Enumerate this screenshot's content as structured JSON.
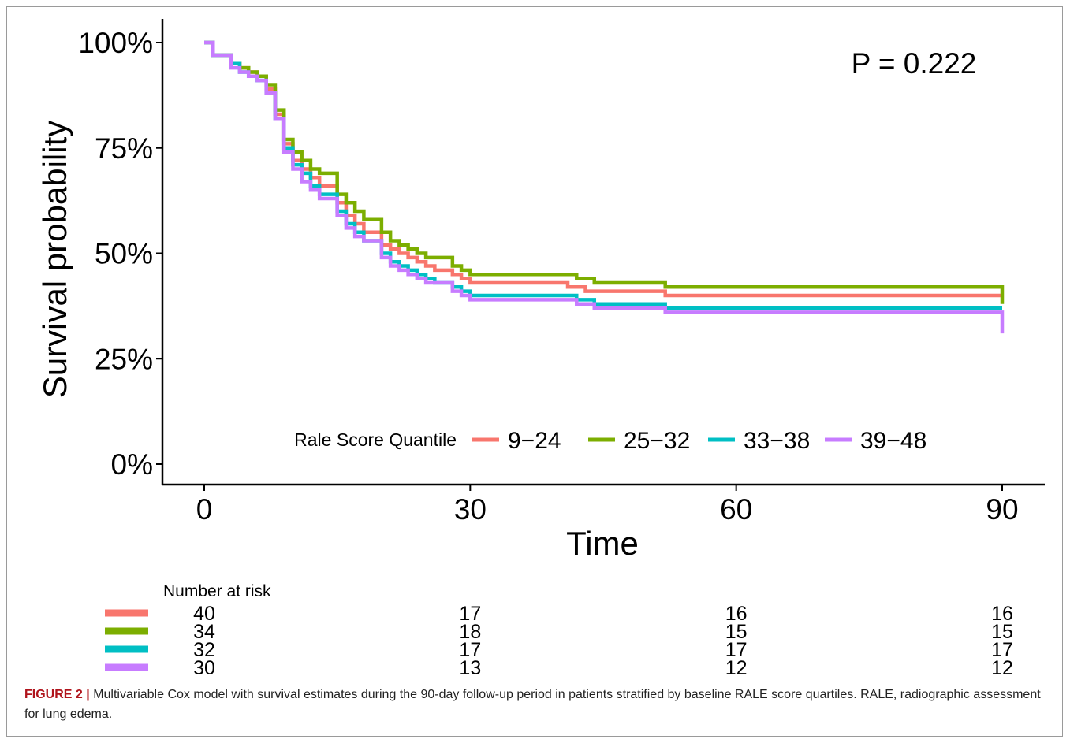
{
  "chart_data": {
    "type": "line",
    "subtype": "kaplan-meier step",
    "ylabel": "Survival probability",
    "xlabel": "Time",
    "x_ticks": [
      "0",
      "30",
      "60",
      "90"
    ],
    "x_tick_values": [
      0,
      30,
      60,
      90
    ],
    "y_ticks": [
      "0%",
      "25%",
      "50%",
      "75%",
      "100%"
    ],
    "y_tick_values": [
      0,
      0.25,
      0.5,
      0.75,
      1.0
    ],
    "xlim": [
      0,
      90
    ],
    "ylim": [
      0,
      1
    ],
    "annotation": "P = 0.222",
    "legend_title": "Rale Score Quantile",
    "legend_position": "bottom-center inside",
    "series": [
      {
        "name": "9−24",
        "color": "#f8766d",
        "x": [
          0,
          1,
          3,
          4,
          5,
          6,
          7,
          8,
          9,
          10,
          11,
          12,
          13,
          15,
          16,
          17,
          18,
          20,
          21,
          22,
          23,
          24,
          25,
          26,
          28,
          29,
          30,
          41,
          43,
          52,
          90,
          90
        ],
        "y": [
          1.0,
          0.97,
          0.95,
          0.94,
          0.93,
          0.92,
          0.89,
          0.83,
          0.76,
          0.72,
          0.7,
          0.68,
          0.66,
          0.62,
          0.59,
          0.57,
          0.55,
          0.52,
          0.51,
          0.5,
          0.49,
          0.48,
          0.47,
          0.46,
          0.45,
          0.44,
          0.43,
          0.42,
          0.41,
          0.4,
          0.4,
          0.4
        ]
      },
      {
        "name": "25−32",
        "color": "#7cae00",
        "x": [
          0,
          1,
          3,
          4,
          5,
          6,
          7,
          8,
          9,
          10,
          11,
          12,
          13,
          15,
          16,
          17,
          18,
          20,
          21,
          22,
          23,
          24,
          25,
          26,
          28,
          29,
          30,
          42,
          44,
          52,
          90,
          90
        ],
        "y": [
          1.0,
          0.97,
          0.95,
          0.94,
          0.93,
          0.92,
          0.9,
          0.84,
          0.77,
          0.74,
          0.72,
          0.7,
          0.69,
          0.64,
          0.62,
          0.6,
          0.58,
          0.55,
          0.53,
          0.52,
          0.51,
          0.5,
          0.49,
          0.49,
          0.47,
          0.46,
          0.45,
          0.44,
          0.43,
          0.42,
          0.42,
          0.38
        ]
      },
      {
        "name": "33−38",
        "color": "#00bfc4",
        "x": [
          0,
          1,
          3,
          4,
          5,
          6,
          7,
          8,
          9,
          10,
          11,
          12,
          13,
          15,
          16,
          17,
          18,
          20,
          21,
          22,
          23,
          24,
          25,
          26,
          28,
          29,
          30,
          42,
          44,
          52,
          90,
          90
        ],
        "y": [
          1.0,
          0.97,
          0.95,
          0.93,
          0.92,
          0.91,
          0.88,
          0.82,
          0.75,
          0.71,
          0.69,
          0.66,
          0.64,
          0.6,
          0.57,
          0.55,
          0.53,
          0.5,
          0.48,
          0.47,
          0.46,
          0.45,
          0.44,
          0.43,
          0.42,
          0.41,
          0.4,
          0.39,
          0.38,
          0.37,
          0.37,
          0.37
        ]
      },
      {
        "name": "39−48",
        "color": "#c77cff",
        "x": [
          0,
          1,
          3,
          4,
          5,
          6,
          7,
          8,
          9,
          10,
          11,
          12,
          13,
          15,
          16,
          17,
          18,
          20,
          21,
          22,
          23,
          24,
          25,
          26,
          28,
          29,
          30,
          42,
          44,
          52,
          90,
          90
        ],
        "y": [
          1.0,
          0.97,
          0.94,
          0.93,
          0.92,
          0.91,
          0.88,
          0.82,
          0.74,
          0.7,
          0.67,
          0.65,
          0.63,
          0.59,
          0.56,
          0.54,
          0.53,
          0.49,
          0.47,
          0.46,
          0.45,
          0.44,
          0.43,
          0.43,
          0.41,
          0.4,
          0.39,
          0.38,
          0.37,
          0.36,
          0.36,
          0.31
        ]
      }
    ],
    "risk_table": {
      "title": "Number at risk",
      "times": [
        0,
        30,
        60,
        90
      ],
      "rows": [
        {
          "color": "#f8766d",
          "values": [
            "40",
            "17",
            "16",
            "16"
          ]
        },
        {
          "color": "#7cae00",
          "values": [
            "34",
            "18",
            "15",
            "15"
          ]
        },
        {
          "color": "#00bfc4",
          "values": [
            "32",
            "17",
            "17",
            "17"
          ]
        },
        {
          "color": "#c77cff",
          "values": [
            "30",
            "13",
            "12",
            "12"
          ]
        }
      ]
    }
  },
  "caption": {
    "label": "FIGURE 2",
    "separator": "|",
    "text": "Multivariable Cox model with survival estimates during the 90-day follow-up period in patients stratified by baseline RALE score quartiles. RALE, radiographic assessment for lung edema."
  }
}
